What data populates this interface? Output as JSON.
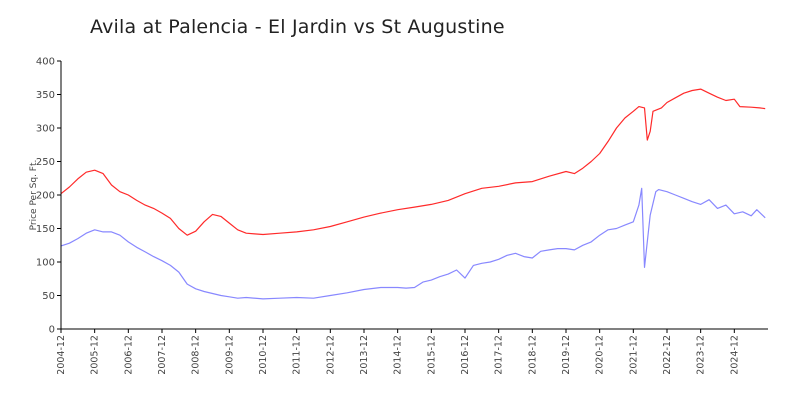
{
  "chart_data": {
    "type": "line",
    "title": "Avila at Palencia - El Jardin vs St Augustine",
    "ylabel": "Price Per Sq. Ft.",
    "xlabel": "",
    "ylim": [
      0,
      400
    ],
    "yticks": [
      0,
      50,
      100,
      150,
      200,
      250,
      300,
      350,
      400
    ],
    "xlim": [
      2004.917,
      2025.917
    ],
    "xtick_labels": [
      "2004-12",
      "2005-12",
      "2006-12",
      "2007-12",
      "2008-12",
      "2009-12",
      "2010-12",
      "2011-12",
      "2012-12",
      "2013-12",
      "2014-12",
      "2015-12",
      "2016-12",
      "2017-12",
      "2018-12",
      "2019-12",
      "2020-12",
      "2021-12",
      "2022-12",
      "2023-12",
      "2024-12"
    ],
    "grid": false,
    "legend": "none",
    "series": [
      {
        "color": "#ff2a2a",
        "points": [
          [
            "2004-12",
            202
          ],
          [
            "2005-03",
            212
          ],
          [
            "2005-06",
            224
          ],
          [
            "2005-09",
            234
          ],
          [
            "2005-12",
            237
          ],
          [
            "2006-03",
            232
          ],
          [
            "2006-06",
            215
          ],
          [
            "2006-09",
            205
          ],
          [
            "2006-12",
            200
          ],
          [
            "2007-03",
            192
          ],
          [
            "2007-06",
            185
          ],
          [
            "2007-09",
            180
          ],
          [
            "2007-12",
            173
          ],
          [
            "2008-03",
            165
          ],
          [
            "2008-06",
            150
          ],
          [
            "2008-09",
            140
          ],
          [
            "2008-12",
            146
          ],
          [
            "2009-03",
            160
          ],
          [
            "2009-06",
            171
          ],
          [
            "2009-09",
            168
          ],
          [
            "2009-12",
            158
          ],
          [
            "2010-03",
            148
          ],
          [
            "2010-06",
            143
          ],
          [
            "2010-09",
            142
          ],
          [
            "2010-12",
            141
          ],
          [
            "2011-06",
            143
          ],
          [
            "2011-12",
            145
          ],
          [
            "2012-06",
            148
          ],
          [
            "2012-12",
            153
          ],
          [
            "2013-06",
            160
          ],
          [
            "2013-12",
            167
          ],
          [
            "2014-06",
            173
          ],
          [
            "2014-12",
            178
          ],
          [
            "2015-06",
            182
          ],
          [
            "2015-12",
            186
          ],
          [
            "2016-06",
            192
          ],
          [
            "2016-12",
            202
          ],
          [
            "2017-06",
            210
          ],
          [
            "2017-12",
            213
          ],
          [
            "2018-06",
            218
          ],
          [
            "2018-12",
            220
          ],
          [
            "2019-06",
            228
          ],
          [
            "2019-12",
            235
          ],
          [
            "2020-03",
            232
          ],
          [
            "2020-06",
            240
          ],
          [
            "2020-09",
            250
          ],
          [
            "2020-12",
            262
          ],
          [
            "2021-03",
            280
          ],
          [
            "2021-06",
            300
          ],
          [
            "2021-09",
            315
          ],
          [
            "2021-12",
            325
          ],
          [
            "2022-02",
            332
          ],
          [
            "2022-04",
            330
          ],
          [
            "2022-05",
            282
          ],
          [
            "2022-06",
            295
          ],
          [
            "2022-07",
            325
          ],
          [
            "2022-10",
            330
          ],
          [
            "2022-12",
            338
          ],
          [
            "2023-03",
            345
          ],
          [
            "2023-06",
            352
          ],
          [
            "2023-09",
            356
          ],
          [
            "2023-12",
            358
          ],
          [
            "2024-03",
            352
          ],
          [
            "2024-06",
            346
          ],
          [
            "2024-09",
            341
          ],
          [
            "2024-12",
            343
          ],
          [
            "2025-02",
            332
          ],
          [
            "2025-06",
            331
          ],
          [
            "2025-09",
            330
          ],
          [
            "2025-11",
            329
          ]
        ]
      },
      {
        "color": "#8888ff",
        "points": [
          [
            "2004-12",
            124
          ],
          [
            "2005-03",
            128
          ],
          [
            "2005-06",
            135
          ],
          [
            "2005-09",
            143
          ],
          [
            "2005-12",
            148
          ],
          [
            "2006-03",
            145
          ],
          [
            "2006-06",
            145
          ],
          [
            "2006-09",
            140
          ],
          [
            "2006-12",
            130
          ],
          [
            "2007-03",
            122
          ],
          [
            "2007-06",
            115
          ],
          [
            "2007-09",
            108
          ],
          [
            "2007-12",
            102
          ],
          [
            "2008-03",
            95
          ],
          [
            "2008-06",
            85
          ],
          [
            "2008-09",
            67
          ],
          [
            "2008-12",
            60
          ],
          [
            "2009-03",
            56
          ],
          [
            "2009-06",
            53
          ],
          [
            "2009-09",
            50
          ],
          [
            "2009-12",
            48
          ],
          [
            "2010-03",
            46
          ],
          [
            "2010-06",
            47
          ],
          [
            "2010-12",
            45
          ],
          [
            "2011-06",
            46
          ],
          [
            "2011-12",
            47
          ],
          [
            "2012-06",
            46
          ],
          [
            "2012-12",
            50
          ],
          [
            "2013-06",
            54
          ],
          [
            "2013-12",
            59
          ],
          [
            "2014-06",
            62
          ],
          [
            "2014-12",
            62
          ],
          [
            "2015-03",
            61
          ],
          [
            "2015-06",
            62
          ],
          [
            "2015-09",
            70
          ],
          [
            "2015-12",
            73
          ],
          [
            "2016-03",
            78
          ],
          [
            "2016-06",
            82
          ],
          [
            "2016-09",
            88
          ],
          [
            "2016-12",
            76
          ],
          [
            "2017-03",
            95
          ],
          [
            "2017-06",
            98
          ],
          [
            "2017-09",
            100
          ],
          [
            "2017-12",
            104
          ],
          [
            "2018-03",
            110
          ],
          [
            "2018-06",
            113
          ],
          [
            "2018-09",
            108
          ],
          [
            "2018-12",
            106
          ],
          [
            "2019-03",
            116
          ],
          [
            "2019-06",
            118
          ],
          [
            "2019-09",
            120
          ],
          [
            "2019-12",
            120
          ],
          [
            "2020-03",
            118
          ],
          [
            "2020-06",
            125
          ],
          [
            "2020-09",
            130
          ],
          [
            "2020-12",
            140
          ],
          [
            "2021-03",
            148
          ],
          [
            "2021-06",
            150
          ],
          [
            "2021-09",
            155
          ],
          [
            "2021-12",
            160
          ],
          [
            "2022-02",
            185
          ],
          [
            "2022-03",
            210
          ],
          [
            "2022-04",
            92
          ],
          [
            "2022-06",
            170
          ],
          [
            "2022-08",
            205
          ],
          [
            "2022-09",
            208
          ],
          [
            "2022-12",
            205
          ],
          [
            "2023-03",
            200
          ],
          [
            "2023-06",
            195
          ],
          [
            "2023-09",
            190
          ],
          [
            "2023-12",
            186
          ],
          [
            "2024-03",
            193
          ],
          [
            "2024-06",
            180
          ],
          [
            "2024-09",
            185
          ],
          [
            "2024-12",
            172
          ],
          [
            "2025-03",
            175
          ],
          [
            "2025-06",
            169
          ],
          [
            "2025-08",
            178
          ],
          [
            "2025-11",
            166
          ]
        ]
      }
    ]
  }
}
